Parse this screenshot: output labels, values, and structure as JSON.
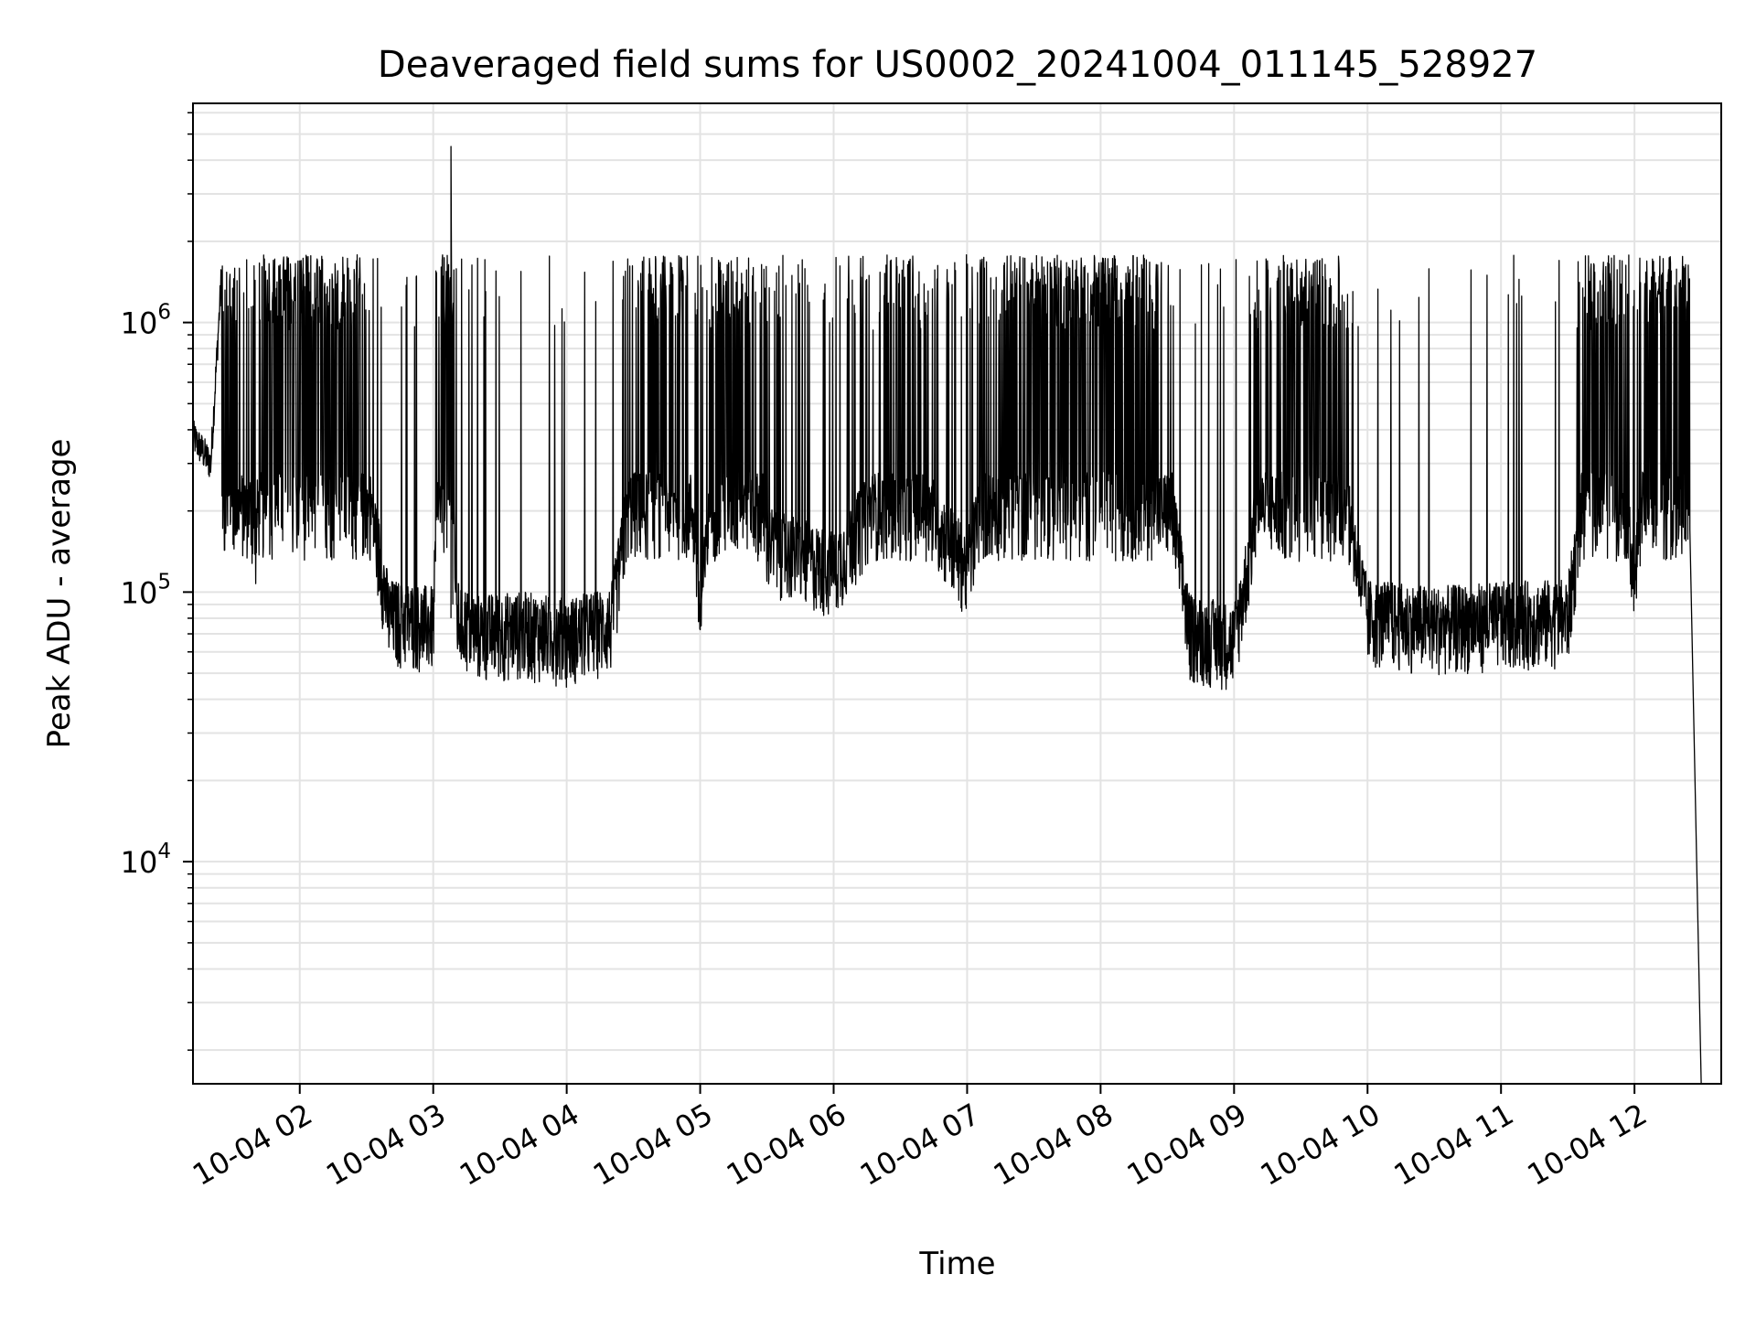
{
  "chart_data": {
    "type": "line",
    "title": "Deaveraged field sums for US0002_20241004_011145_528927",
    "xlabel": "Time",
    "ylabel": "Peak ADU - average",
    "yscale": "log",
    "ylim": [
      1500,
      6500000
    ],
    "xlim": [
      "2024-10-04 01:12",
      "2024-10-04 12:39"
    ],
    "grid": true,
    "line_color": "#000000",
    "x_ticks": [
      "10-04 02",
      "10-04 03",
      "10-04 04",
      "10-04 05",
      "10-04 06",
      "10-04 07",
      "10-04 08",
      "10-04 09",
      "10-04 10",
      "10-04 11",
      "10-04 12"
    ],
    "y_ticks": [
      {
        "base": "10",
        "exp": "4",
        "value": 10000
      },
      {
        "base": "10",
        "exp": "5",
        "value": 100000
      },
      {
        "base": "10",
        "exp": "6",
        "value": 1000000
      }
    ],
    "series": [
      {
        "x": [
          "2024-10-04 01:12",
          "2024-10-04 01:20",
          "2024-10-04 01:25",
          "2024-10-04 01:30",
          "2024-10-04 01:40",
          "2024-10-04 01:50",
          "2024-10-04 02:00",
          "2024-10-04 02:20",
          "2024-10-04 02:40",
          "2024-10-04 03:00",
          "2024-10-04 03:08",
          "2024-10-04 03:10",
          "2024-10-04 03:20",
          "2024-10-04 03:40",
          "2024-10-04 04:00",
          "2024-10-04 04:20",
          "2024-10-04 04:40",
          "2024-10-04 04:50",
          "2024-10-04 05:00",
          "2024-10-04 05:15",
          "2024-10-04 05:30",
          "2024-10-04 06:00",
          "2024-10-04 06:30",
          "2024-10-04 07:00",
          "2024-10-04 07:30",
          "2024-10-04 08:00",
          "2024-10-04 08:20",
          "2024-10-04 08:40",
          "2024-10-04 09:00",
          "2024-10-04 09:30",
          "2024-10-04 10:00",
          "2024-10-04 10:30",
          "2024-10-04 11:00",
          "2024-10-04 11:30",
          "2024-10-04 11:50",
          "2024-10-04 12:00",
          "2024-10-04 12:10",
          "2024-10-04 12:20",
          "2024-10-04 12:25",
          "2024-10-04 12:30"
        ],
        "y": [
          380000,
          300000,
          1600000,
          600000,
          150000,
          1700000,
          1500000,
          900000,
          80000,
          75000,
          4500000,
          80000,
          70000,
          72000,
          68000,
          75000,
          1000000,
          1200000,
          80000,
          1700000,
          150000,
          120000,
          300000,
          120000,
          1700000,
          1600000,
          1000000,
          70000,
          65000,
          1500000,
          80000,
          75000,
          78000,
          80000,
          1500000,
          100000,
          1300000,
          1000000,
          1800000,
          1500
        ]
      }
    ]
  }
}
